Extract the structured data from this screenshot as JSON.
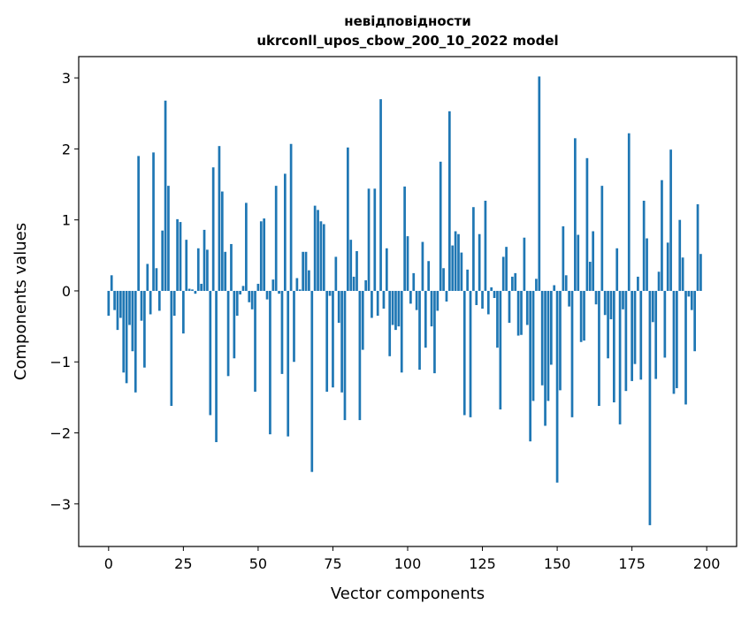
{
  "chart_data": {
    "type": "bar",
    "title": "невідповідности",
    "subtitle": "ukrconll_upos_cbow_200_10_2022 model",
    "xlabel": "Vector components",
    "ylabel": "Components values",
    "xlim": [
      -10,
      210
    ],
    "ylim": [
      -3.6,
      3.3
    ],
    "xticks": [
      "0",
      "25",
      "50",
      "75",
      "100",
      "125",
      "150",
      "175",
      "200"
    ],
    "yticks": [
      "−3",
      "−2",
      "−1",
      "0",
      "1",
      "2",
      "3"
    ],
    "grid": false,
    "bar_color": "#1f77b4",
    "values": [
      -0.35,
      0.22,
      -0.27,
      -0.55,
      -0.38,
      -1.15,
      -1.3,
      -0.48,
      -0.85,
      -1.43,
      1.9,
      -0.42,
      -1.08,
      0.38,
      -0.33,
      1.95,
      0.32,
      -0.28,
      0.85,
      2.68,
      1.48,
      -1.62,
      -0.35,
      1.01,
      0.97,
      -0.6,
      0.72,
      0.03,
      0.02,
      -0.04,
      0.6,
      0.1,
      0.86,
      0.58,
      -1.75,
      1.74,
      -2.13,
      2.04,
      1.4,
      0.55,
      -1.2,
      0.66,
      -0.95,
      -0.35,
      -0.05,
      0.07,
      1.24,
      -0.16,
      -0.26,
      -1.42,
      0.1,
      0.98,
      1.02,
      -0.12,
      -2.02,
      0.16,
      1.48,
      -0.04,
      -1.17,
      1.65,
      -2.05,
      2.07,
      -1.0,
      0.18,
      0.02,
      0.55,
      0.55,
      0.29,
      -2.55,
      1.2,
      1.14,
      0.98,
      0.94,
      -1.42,
      -0.07,
      -1.36,
      0.48,
      -0.45,
      -1.43,
      -1.82,
      2.02,
      0.72,
      0.2,
      0.56,
      -1.82,
      -0.83,
      0.15,
      1.44,
      -0.38,
      1.44,
      -0.35,
      2.7,
      -0.25,
      0.6,
      -0.92,
      -0.48,
      -0.55,
      -0.5,
      -1.15,
      1.47,
      0.77,
      -0.18,
      0.25,
      -0.27,
      -1.11,
      0.69,
      -0.8,
      0.42,
      -0.5,
      -1.16,
      -0.28,
      1.82,
      0.32,
      -0.15,
      2.53,
      0.64,
      0.84,
      0.8,
      0.54,
      -1.75,
      0.3,
      -1.78,
      1.18,
      -0.2,
      0.8,
      -0.25,
      1.27,
      -0.33,
      0.05,
      -0.1,
      -0.8,
      -1.67,
      0.48,
      0.62,
      -0.45,
      0.2,
      0.25,
      -0.63,
      -0.62,
      0.75,
      -0.48,
      -2.12,
      -1.55,
      0.17,
      3.02,
      -1.33,
      -1.9,
      -1.55,
      -1.04,
      0.08,
      -2.7,
      -1.4,
      0.91,
      0.22,
      -0.22,
      -1.78,
      2.15,
      0.79,
      -0.72,
      -0.7,
      1.87,
      0.41,
      0.84,
      -0.19,
      -1.62,
      1.48,
      -0.34,
      -0.95,
      -0.4,
      -1.57,
      0.6,
      -1.88,
      -0.26,
      -1.41,
      2.22,
      -1.27,
      -1.03,
      0.2,
      -1.25,
      1.27,
      0.74,
      -3.3,
      -0.44,
      -1.24,
      0.27,
      1.56,
      -0.94,
      0.68,
      1.99,
      -1.45,
      -1.37,
      1.0,
      0.47,
      -1.6,
      -0.08,
      -0.27,
      -0.85,
      1.22,
      0.52
    ]
  }
}
